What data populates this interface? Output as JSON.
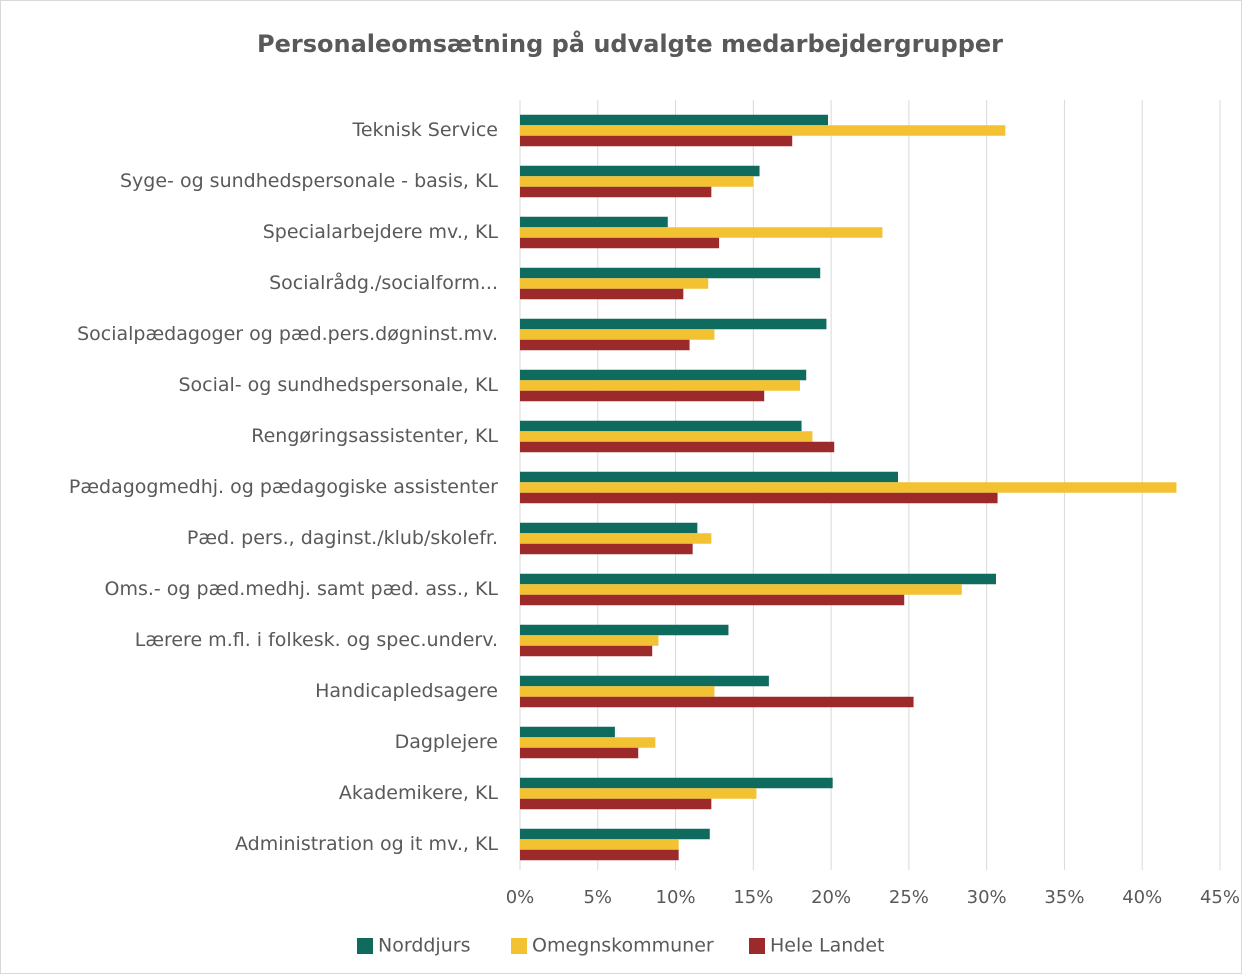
{
  "chart_data": {
    "type": "hbar",
    "title": "Personaleomsætning på udvalgte medarbejdergrupper",
    "categories": [
      "Teknisk Service",
      "Syge- og sundhedspersonale - basis, KL",
      "Specialarbejdere mv., KL",
      "Socialrådg./socialform...",
      "Socialpædagoger og pæd.pers.døgninst.mv.",
      "Social- og sundhedspersonale, KL",
      "Rengøringsassistenter, KL",
      "Pædagogmedhj. og pædagogiske assistenter",
      "Pæd. pers., daginst./klub/skolefr.",
      "Oms.- og pæd.medhj. samt pæd. ass., KL",
      "Lærere m.fl. i folkesk. og spec.underv.",
      "Handicapledsagere",
      "Dagplejere",
      "Akademikere, KL",
      "Administration og it mv., KL"
    ],
    "series": [
      {
        "name": "Norddjurs",
        "color": "#0e6b5e",
        "values": [
          19.8,
          15.4,
          9.5,
          19.3,
          19.7,
          18.4,
          18.1,
          24.3,
          11.4,
          30.6,
          13.4,
          16.0,
          6.1,
          20.1,
          12.2
        ]
      },
      {
        "name": "Omegnskommuner",
        "color": "#f2c232",
        "values": [
          31.2,
          15.0,
          23.3,
          12.1,
          12.5,
          18.0,
          18.8,
          42.2,
          12.3,
          28.4,
          8.9,
          12.5,
          8.7,
          15.2,
          10.2
        ]
      },
      {
        "name": "Hele Landet",
        "color": "#9c2a2a",
        "values": [
          17.5,
          12.3,
          12.8,
          10.5,
          10.9,
          15.7,
          20.2,
          30.7,
          11.1,
          24.7,
          8.5,
          25.3,
          7.6,
          12.3,
          10.2
        ]
      }
    ],
    "xlim": [
      0,
      45
    ],
    "xticks": [
      {
        "value": 0,
        "label": "0%"
      },
      {
        "value": 5,
        "label": "5%"
      },
      {
        "value": 10,
        "label": "10%"
      },
      {
        "value": 15,
        "label": "15%"
      },
      {
        "value": 20,
        "label": "20%"
      },
      {
        "value": 25,
        "label": "25%"
      },
      {
        "value": 30,
        "label": "30%"
      },
      {
        "value": 35,
        "label": "35%"
      },
      {
        "value": 40,
        "label": "40%"
      },
      {
        "value": 45,
        "label": "45%"
      }
    ],
    "grid": true,
    "legend": "bottom"
  }
}
